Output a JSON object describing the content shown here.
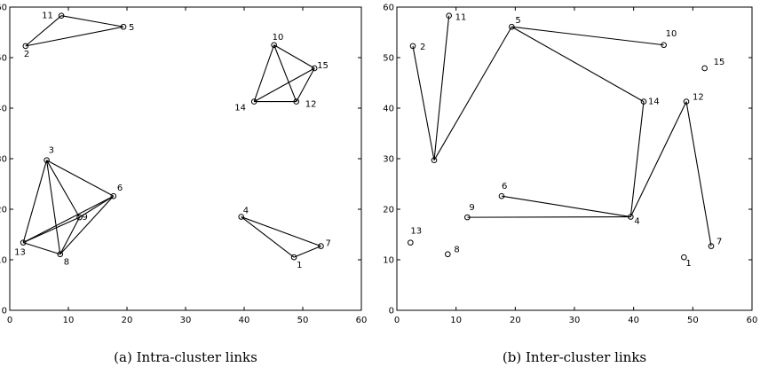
{
  "chart_data": [
    {
      "type": "scatter",
      "caption": "(a) Intra-cluster links",
      "xlim": [
        0,
        60
      ],
      "ylim": [
        0,
        60
      ],
      "xticks": [
        0,
        10,
        20,
        30,
        40,
        50,
        60
      ],
      "yticks": [
        0,
        10,
        20,
        30,
        40,
        50,
        60
      ],
      "grid": false,
      "nodes": [
        {
          "id": "1",
          "x": 48.5,
          "y": 10.5
        },
        {
          "id": "2",
          "x": 2.7,
          "y": 52.3
        },
        {
          "id": "3",
          "x": 6.3,
          "y": 29.7
        },
        {
          "id": "4",
          "x": 39.5,
          "y": 18.5
        },
        {
          "id": "5",
          "x": 19.4,
          "y": 56.1
        },
        {
          "id": "6",
          "x": 17.7,
          "y": 22.6
        },
        {
          "id": "7",
          "x": 53.1,
          "y": 12.7
        },
        {
          "id": "8",
          "x": 8.6,
          "y": 11.1
        },
        {
          "id": "9",
          "x": 11.9,
          "y": 18.4
        },
        {
          "id": "10",
          "x": 45.1,
          "y": 52.5
        },
        {
          "id": "11",
          "x": 8.8,
          "y": 58.3
        },
        {
          "id": "12",
          "x": 48.9,
          "y": 41.3
        },
        {
          "id": "13",
          "x": 2.3,
          "y": 13.4
        },
        {
          "id": "14",
          "x": 41.7,
          "y": 41.3
        },
        {
          "id": "15",
          "x": 52.0,
          "y": 47.9
        }
      ],
      "links": [
        [
          "2",
          "11"
        ],
        [
          "11",
          "5"
        ],
        [
          "2",
          "5"
        ],
        [
          "10",
          "15"
        ],
        [
          "10",
          "14"
        ],
        [
          "10",
          "12"
        ],
        [
          "14",
          "12"
        ],
        [
          "14",
          "15"
        ],
        [
          "12",
          "15"
        ],
        [
          "3",
          "13"
        ],
        [
          "3",
          "8"
        ],
        [
          "3",
          "9"
        ],
        [
          "3",
          "6"
        ],
        [
          "13",
          "6"
        ],
        [
          "13",
          "9"
        ],
        [
          "13",
          "8"
        ],
        [
          "8",
          "6"
        ],
        [
          "8",
          "9"
        ],
        [
          "9",
          "6"
        ],
        [
          "4",
          "7"
        ],
        [
          "4",
          "1"
        ],
        [
          "1",
          "7"
        ]
      ]
    },
    {
      "type": "scatter",
      "caption": "(b) Inter-cluster links",
      "xlim": [
        0,
        60
      ],
      "ylim": [
        0,
        60
      ],
      "xticks": [
        0,
        10,
        20,
        30,
        40,
        50,
        60
      ],
      "yticks": [
        0,
        10,
        20,
        30,
        40,
        50,
        60
      ],
      "grid": false,
      "nodes": [
        {
          "id": "1",
          "x": 48.5,
          "y": 10.5
        },
        {
          "id": "2",
          "x": 2.7,
          "y": 52.3
        },
        {
          "id": "3",
          "x": 6.3,
          "y": 29.7
        },
        {
          "id": "4",
          "x": 39.5,
          "y": 18.5
        },
        {
          "id": "5",
          "x": 19.4,
          "y": 56.1
        },
        {
          "id": "6",
          "x": 17.7,
          "y": 22.6
        },
        {
          "id": "7",
          "x": 53.1,
          "y": 12.7
        },
        {
          "id": "8",
          "x": 8.6,
          "y": 11.1
        },
        {
          "id": "9",
          "x": 11.9,
          "y": 18.4
        },
        {
          "id": "10",
          "x": 45.1,
          "y": 52.5
        },
        {
          "id": "11",
          "x": 8.8,
          "y": 58.3
        },
        {
          "id": "12",
          "x": 48.9,
          "y": 41.3
        },
        {
          "id": "13",
          "x": 2.3,
          "y": 13.4
        },
        {
          "id": "14",
          "x": 41.7,
          "y": 41.3
        },
        {
          "id": "15",
          "x": 52.0,
          "y": 47.9
        }
      ],
      "hidden_node_labels": [
        "3"
      ],
      "links": [
        [
          "2",
          "3"
        ],
        [
          "3",
          "11"
        ],
        [
          "3",
          "5"
        ],
        [
          "5",
          "10"
        ],
        [
          "5",
          "14"
        ],
        [
          "14",
          "4"
        ],
        [
          "9",
          "4"
        ],
        [
          "6",
          "4"
        ],
        [
          "4",
          "12"
        ],
        [
          "12",
          "7"
        ]
      ]
    }
  ]
}
